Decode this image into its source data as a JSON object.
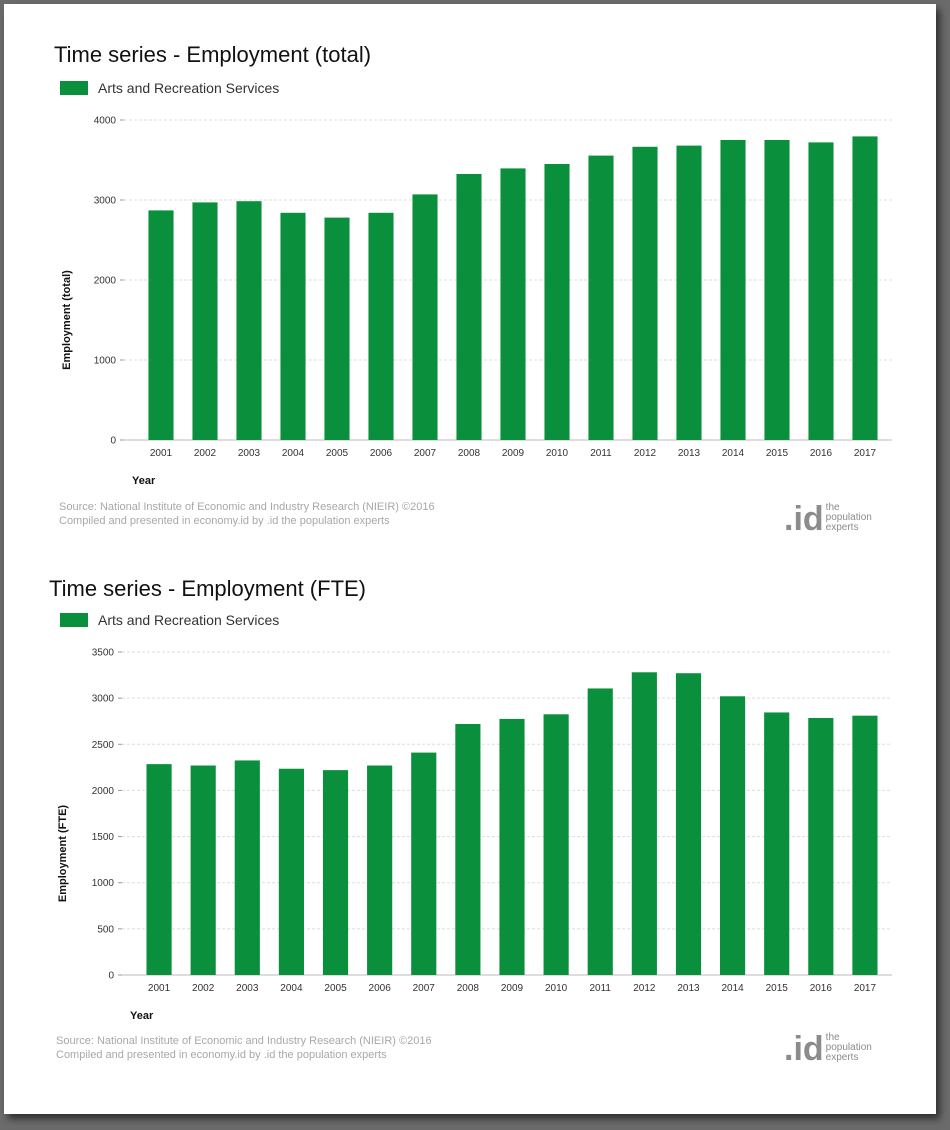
{
  "chart_data": [
    {
      "type": "bar",
      "title": "Time series - Employment (total)",
      "xlabel": "Year",
      "ylabel": "Employment (total)",
      "legend": "top-left",
      "grid": true,
      "ylim": [
        0,
        4000
      ],
      "yticks": [
        0,
        1000,
        2000,
        3000,
        4000
      ],
      "categories": [
        "2001",
        "2002",
        "2003",
        "2004",
        "2005",
        "2006",
        "2007",
        "2008",
        "2009",
        "2010",
        "2011",
        "2012",
        "2013",
        "2014",
        "2015",
        "2016",
        "2017"
      ],
      "series": [
        {
          "name": "Arts and Recreation Services",
          "color": "#0a8f3c",
          "values": [
            2870,
            2970,
            2985,
            2840,
            2780,
            2840,
            3070,
            3325,
            3395,
            3450,
            3555,
            3665,
            3680,
            3750,
            3750,
            3720,
            3795
          ]
        }
      ],
      "source_lines": [
        "Source: National Institute of Economic and Industry Research (NIEIR) ©2016",
        "Compiled and presented in economy.id by .id the population experts"
      ]
    },
    {
      "type": "bar",
      "title": "Time series - Employment (FTE)",
      "xlabel": "Year",
      "ylabel": "Employment (FTE)",
      "legend": "top-left",
      "grid": true,
      "ylim": [
        0,
        3500
      ],
      "yticks": [
        0,
        500,
        1000,
        1500,
        2000,
        2500,
        3000,
        3500
      ],
      "categories": [
        "2001",
        "2002",
        "2003",
        "2004",
        "2005",
        "2006",
        "2007",
        "2008",
        "2009",
        "2010",
        "2011",
        "2012",
        "2013",
        "2014",
        "2015",
        "2016",
        "2017"
      ],
      "series": [
        {
          "name": "Arts and Recreation Services",
          "color": "#0a8f3c",
          "values": [
            2285,
            2270,
            2325,
            2235,
            2220,
            2270,
            2410,
            2720,
            2775,
            2825,
            3105,
            3280,
            3270,
            3020,
            2845,
            2785,
            2810
          ]
        }
      ],
      "source_lines": [
        "Source: National Institute of Economic and Industry Research (NIEIR) ©2016",
        "Compiled and presented in economy.id by .id the population experts"
      ]
    }
  ],
  "logo": {
    "mark": ".id",
    "lines": [
      "the",
      "population",
      "experts"
    ]
  }
}
